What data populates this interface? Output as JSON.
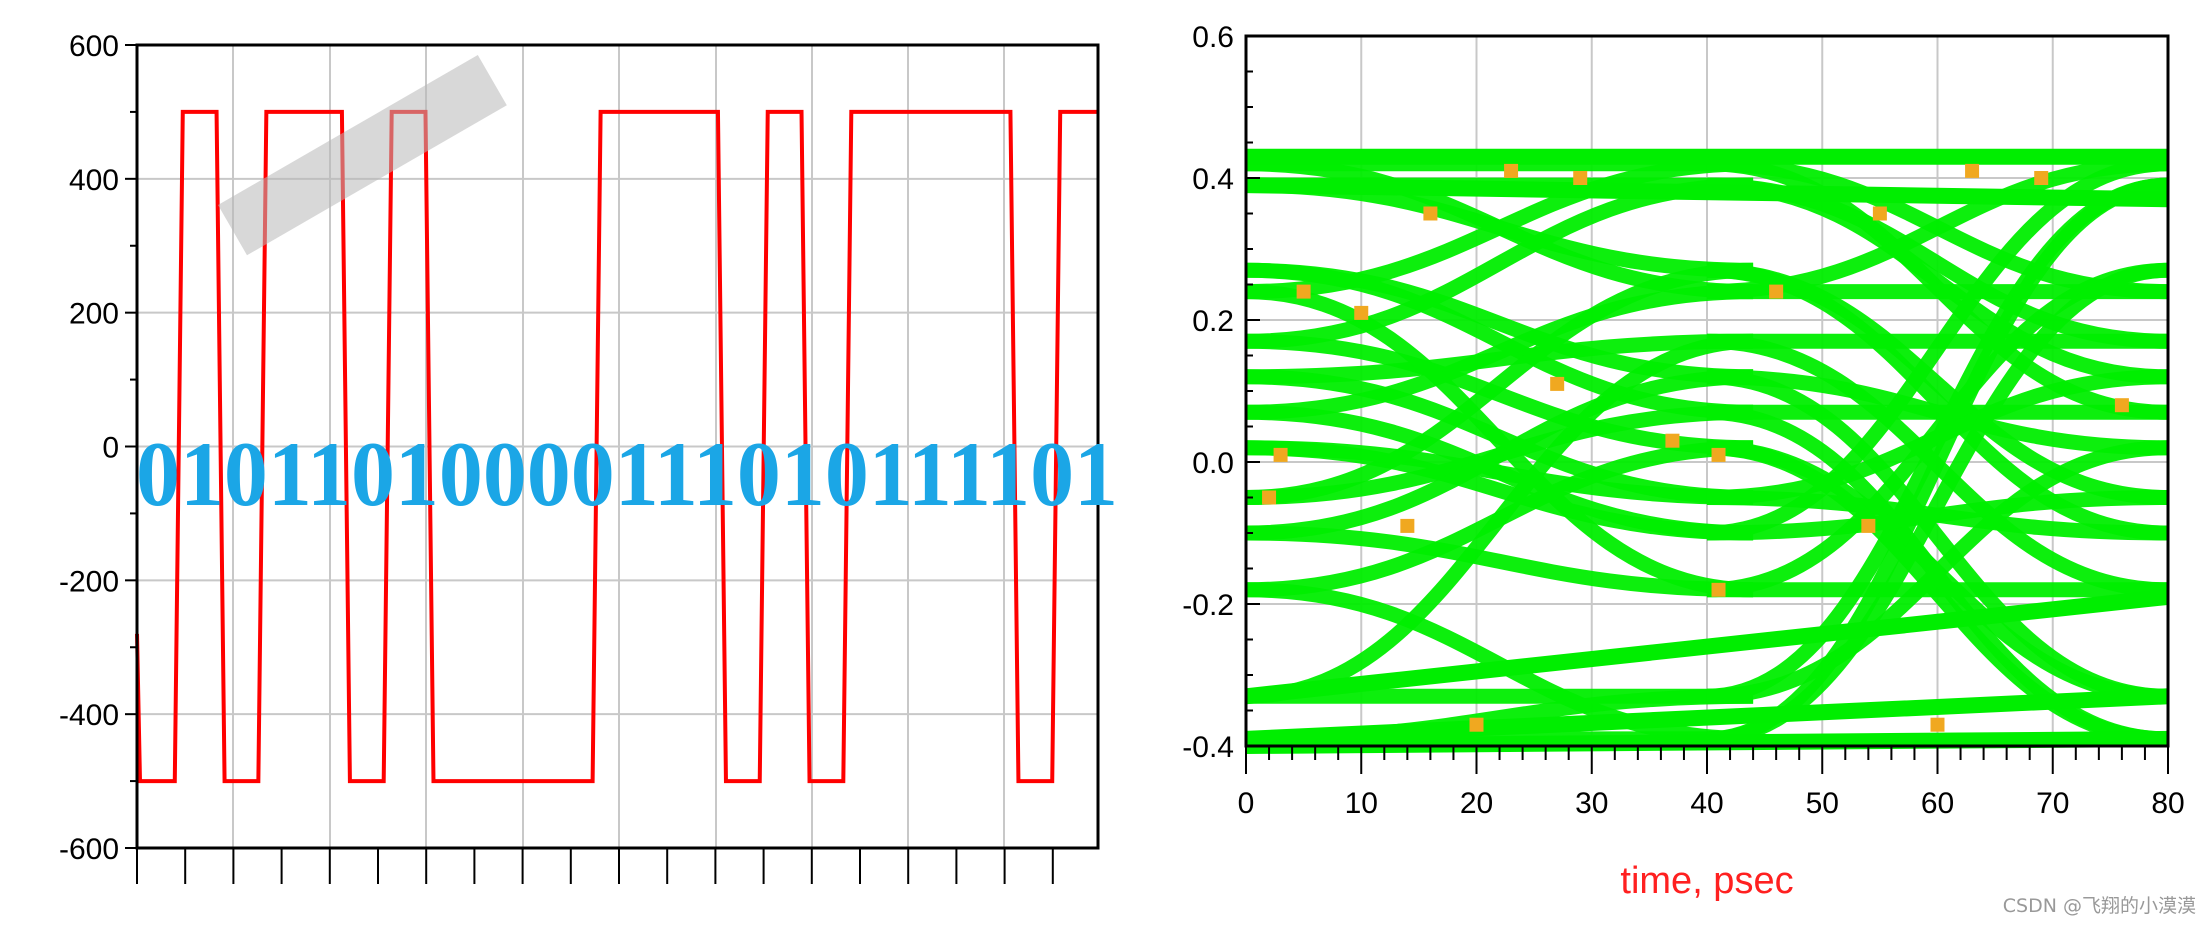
{
  "colors": {
    "waveform": "#ff0000",
    "eye_trace": "#00ee00",
    "bit_text": "#1ba6e6",
    "xlabel": "#ff2020",
    "grid": "#c8c8c8",
    "watermark": "#999999"
  },
  "watermark": "CSDN @飞翔的小漠漠",
  "chart_data": [
    {
      "type": "line",
      "title": "",
      "xlabel": "",
      "ylabel": "",
      "xlim": [
        0,
        23
      ],
      "ylim": [
        -600,
        600
      ],
      "yticks": [
        "600",
        "400",
        "200",
        "0",
        "-200",
        "-400",
        "-600"
      ],
      "grid": true,
      "bit_sequence_label": "01011010000111010111101",
      "bits": [
        0,
        1,
        0,
        1,
        1,
        0,
        1,
        0,
        0,
        0,
        0,
        1,
        1,
        1,
        0,
        1,
        0,
        1,
        1,
        1,
        1,
        0,
        1
      ],
      "levels": {
        "low": -500,
        "high": 500
      },
      "series": [
        {
          "values": [
            -500,
            500,
            -500,
            500,
            500,
            -500,
            500,
            -500,
            -500,
            -500,
            -500,
            500,
            500,
            500,
            -500,
            500,
            -500,
            500,
            500,
            500,
            500,
            -500,
            500
          ]
        }
      ]
    },
    {
      "type": "line",
      "title": "",
      "xlabel": "time, psec",
      "ylabel": "",
      "xlim": [
        0,
        80
      ],
      "ylim": [
        -0.4,
        0.6
      ],
      "xticks": [
        "0",
        "10",
        "20",
        "30",
        "40",
        "50",
        "60",
        "70",
        "80"
      ],
      "yticks": [
        "0.6",
        "0.4",
        "0.2",
        "0.0",
        "-0.2",
        "-0.4"
      ],
      "grid": true,
      "unit_interval_ps": 40,
      "trace_levels": [
        0.42,
        0.39,
        0.27,
        0.24,
        0.17,
        0.12,
        0.07,
        0.02,
        -0.05,
        -0.1,
        -0.18,
        -0.33,
        -0.39
      ]
    }
  ]
}
